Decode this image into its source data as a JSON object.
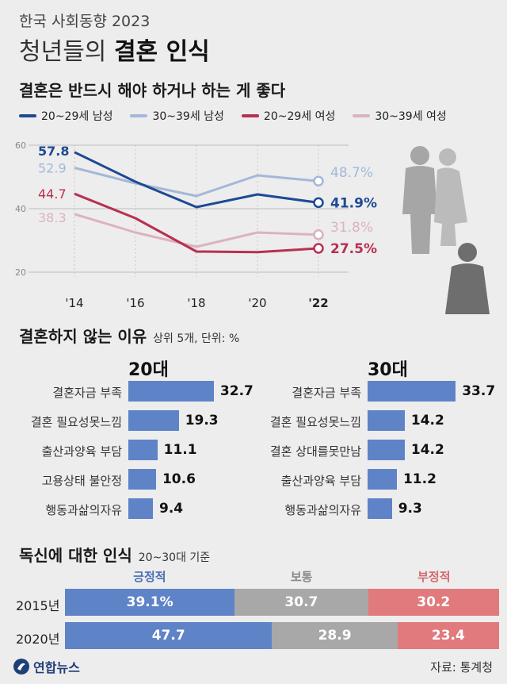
{
  "header": {
    "subtitle": "한국 사회동향 2023",
    "title_plain": "청년들의 ",
    "title_bold": "결혼 인식"
  },
  "section1": {
    "title": "결혼은 반드시 해야 하거나 하는 게 좋다"
  },
  "section2": {
    "title": "결혼하지 않는 이유",
    "note": "상위 5개, 단위: %"
  },
  "section3": {
    "title": "독신에 대한 인식",
    "note": "20~30대 기준"
  },
  "colors": {
    "m20": "#1d4a94",
    "m30": "#a5b7d9",
    "f20": "#b8304f",
    "f30": "#dbb3bc",
    "bar": "#5f83c7",
    "positive": "#5f83c7",
    "neutral": "#a8a8a8",
    "negative": "#e07a7c",
    "positive_label": "#4a6fb5",
    "neutral_label": "#888888",
    "negative_label": "#d46a6e"
  },
  "chart_data": [
    {
      "type": "line",
      "title": "결혼은 반드시 해야 하거나 하는 게 좋다",
      "x": [
        "'14",
        "'16",
        "'18",
        "'20",
        "'22"
      ],
      "ylim": [
        20,
        60
      ],
      "yticks": [
        "20",
        "40",
        "60"
      ],
      "grid": true,
      "series": [
        {
          "key": "m20",
          "name": "20~29세 남성",
          "values": [
            57.8,
            48.5,
            40.5,
            44.5,
            41.9
          ],
          "start_label": "57.8",
          "end_label": "41.9%"
        },
        {
          "key": "m30",
          "name": "30~39세 남성",
          "values": [
            52.9,
            48.0,
            44.0,
            50.5,
            48.7
          ],
          "start_label": "52.9",
          "end_label": "48.7%"
        },
        {
          "key": "f20",
          "name": "20~29세 여성",
          "values": [
            44.7,
            37.0,
            26.5,
            26.3,
            27.5
          ],
          "start_label": "44.7",
          "end_label": "27.5%"
        },
        {
          "key": "f30",
          "name": "30~39세 여성",
          "values": [
            38.3,
            32.5,
            28.0,
            32.5,
            31.8
          ],
          "start_label": "38.3",
          "end_label": "31.8%"
        }
      ]
    },
    {
      "type": "bar",
      "title": "결혼하지 않는 이유 - 20대",
      "group": "20대",
      "categories": [
        "결혼자금 부족",
        "결혼 필요성못느낌",
        "출산과양육 부담",
        "고용상태 불안정",
        "행동과삶의자유"
      ],
      "values": [
        32.7,
        19.3,
        11.1,
        10.6,
        9.4
      ],
      "labels": [
        "32.7",
        "19.3",
        "11.1",
        "10.6",
        "9.4"
      ]
    },
    {
      "type": "bar",
      "title": "결혼하지 않는 이유 - 30대",
      "group": "30대",
      "categories": [
        "결혼자금 부족",
        "결혼 필요성못느낌",
        "결혼 상대를못만남",
        "출산과양육 부담",
        "행동과삶의자유"
      ],
      "values": [
        33.7,
        14.2,
        14.2,
        11.2,
        9.3
      ],
      "labels": [
        "33.7",
        "14.2",
        "14.2",
        "11.2",
        "9.3"
      ]
    },
    {
      "type": "bar",
      "stacked": true,
      "title": "독신에 대한 인식",
      "segments": [
        "긍정적",
        "보통",
        "부정적"
      ],
      "categories": [
        "2015년",
        "2020년"
      ],
      "series": [
        {
          "name": "긍정적",
          "values": [
            39.1,
            47.7
          ],
          "labels": [
            "39.1%",
            "47.7"
          ]
        },
        {
          "name": "보통",
          "values": [
            30.7,
            28.9
          ],
          "labels": [
            "30.7",
            "28.9"
          ]
        },
        {
          "name": "부정적",
          "values": [
            30.2,
            23.4
          ],
          "labels": [
            "30.2",
            "23.4"
          ]
        }
      ]
    }
  ],
  "footer": {
    "logo": "연합뉴스",
    "source": "자료: 통계청"
  }
}
